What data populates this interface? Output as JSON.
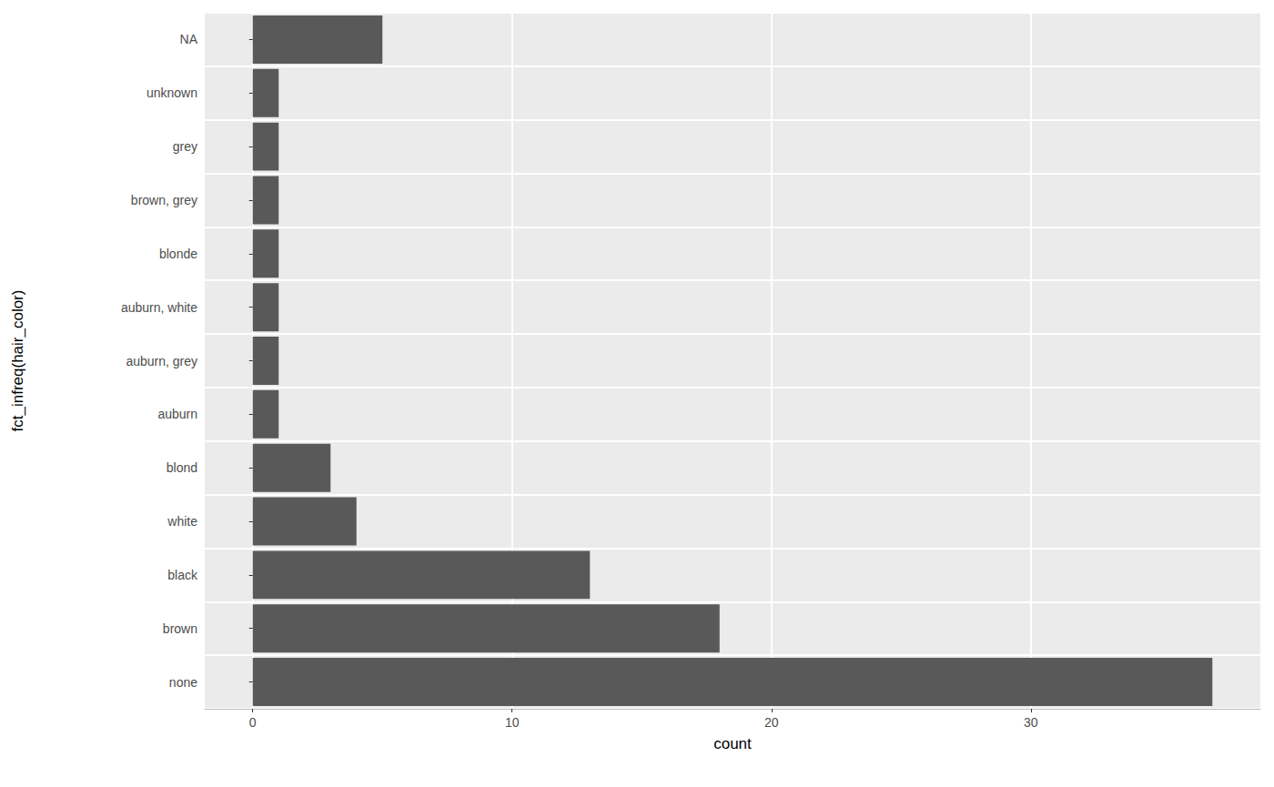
{
  "chart_data": {
    "type": "bar",
    "orientation": "horizontal",
    "categories": [
      "none",
      "brown",
      "black",
      "white",
      "blond",
      "auburn",
      "auburn, grey",
      "auburn, white",
      "blonde",
      "brown, grey",
      "grey",
      "unknown",
      "NA"
    ],
    "values": [
      37,
      18,
      13,
      4,
      3,
      1,
      1,
      1,
      1,
      1,
      1,
      1,
      5
    ],
    "color": "#595959",
    "xlim": [
      -1.85,
      38.85
    ],
    "xticks": [
      0,
      10,
      20,
      30
    ],
    "grid": true,
    "x_label": "count",
    "y_label": "fct_infreq(hair_color)"
  }
}
